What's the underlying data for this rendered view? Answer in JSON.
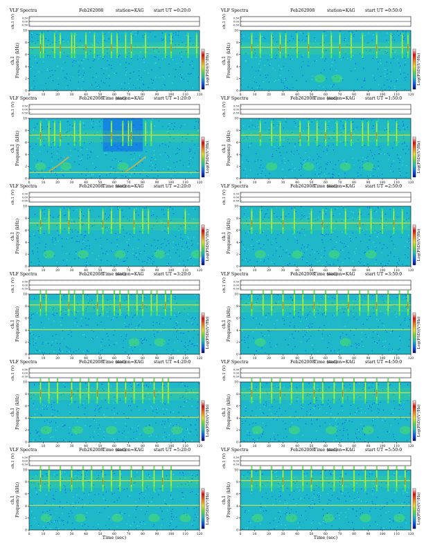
{
  "header": {
    "prefix": "VLF Spectra",
    "date": "Feb262008",
    "station": "station=KAG",
    "start_prefix": "start  UT ="
  },
  "axes": {
    "top_ylabel": "ch.1 (V)",
    "top_yticks": [
      "0.50",
      "0.00",
      "-0.50"
    ],
    "ylabel_line1": "ch.1",
    "ylabel_line2": "Frequency  (kHz)",
    "yticks": [
      "0",
      "2",
      "4",
      "6",
      "8",
      "10"
    ],
    "xlabel": "Time  (sec)",
    "xticks": [
      "0",
      "10",
      "20",
      "30",
      "40",
      "50",
      "60",
      "70",
      "80",
      "90",
      "100",
      "110",
      "120"
    ],
    "colorbar_label": "Log(PSD)(V²/Hz)"
  },
  "colors": {
    "background": "#1fb8c8",
    "speckle_dark": "#0c5ff0",
    "speckle_mid": "#2ea0f0",
    "speckle_light": "#4fe0d8",
    "emission_green": "#57e850",
    "emission_yellow": "#e8e83a",
    "emission_red": "#e23a10",
    "colorbar": [
      "#ffffff",
      "#d81010",
      "#f08020",
      "#f0e030",
      "#60e040",
      "#20c0c0",
      "#1060f0",
      "#0a0a80"
    ]
  },
  "chart_data": [
    {
      "type": "heatmap",
      "start_ut": "0:20:0",
      "x_range": [
        0,
        120
      ],
      "y_range": [
        0,
        10
      ],
      "spike_times": [
        8,
        10,
        18,
        22,
        30,
        32,
        40,
        46,
        52,
        58,
        62,
        68,
        72,
        82,
        96,
        100,
        112,
        118
      ],
      "horizontal_lines_khz": [
        7.2
      ],
      "band_khz": [
        6,
        8
      ],
      "low_blob_times": []
    },
    {
      "type": "heatmap",
      "start_ut": "0:50:0",
      "x_range": [
        0,
        120
      ],
      "y_range": [
        0,
        10
      ],
      "spike_times": [
        8,
        14,
        22,
        28,
        32,
        40,
        48,
        58,
        64,
        70,
        78,
        86,
        96,
        106,
        114,
        118
      ],
      "horizontal_lines_khz": [
        7.2
      ],
      "band_khz": [
        6,
        8
      ],
      "low_blob_times": [
        56,
        68
      ]
    },
    {
      "type": "heatmap",
      "start_ut": "1:20:0",
      "x_range": [
        0,
        120
      ],
      "y_range": [
        0,
        10
      ],
      "spike_times": [
        8,
        14,
        18,
        22,
        32,
        36,
        58,
        66,
        70,
        72,
        82,
        86
      ],
      "horizontal_lines_khz": [
        7.2,
        1.0
      ],
      "band_khz": [
        6,
        8
      ],
      "low_blob_times": [
        8,
        26,
        66
      ],
      "dark_regions_sec": [
        [
          52,
          80
        ]
      ],
      "rising_tones_sec": [
        [
          14,
          28
        ],
        [
          68,
          82
        ]
      ]
    },
    {
      "type": "heatmap",
      "start_ut": "1:50:0",
      "x_range": [
        0,
        120
      ],
      "y_range": [
        0,
        10
      ],
      "spike_times": [
        14,
        22,
        28,
        42,
        48,
        54,
        60,
        68,
        74,
        78,
        86,
        90,
        96,
        104,
        110
      ],
      "horizontal_lines_khz": [
        7.2
      ],
      "band_khz": [
        6,
        8
      ],
      "low_blob_times": [
        22,
        48,
        74,
        90
      ]
    },
    {
      "type": "heatmap",
      "start_ut": "2:20:0",
      "x_range": [
        0,
        120
      ],
      "y_range": [
        0,
        10
      ],
      "spike_times": [
        8,
        14,
        22,
        28,
        36,
        42,
        52,
        58,
        64,
        74,
        80,
        84,
        98,
        110
      ],
      "horizontal_lines_khz": [
        7.2
      ],
      "band_khz": [
        6,
        8
      ],
      "low_blob_times": [
        14,
        38,
        64,
        92,
        118
      ]
    },
    {
      "type": "heatmap",
      "start_ut": "2:50:0",
      "x_range": [
        0,
        120
      ],
      "y_range": [
        0,
        10
      ],
      "spike_times": [
        8,
        14,
        22,
        30,
        38,
        50,
        58,
        64,
        74,
        84,
        92,
        100,
        108,
        114
      ],
      "horizontal_lines_khz": [
        7.2
      ],
      "band_khz": [
        6,
        8
      ],
      "low_blob_times": [
        14,
        40,
        66,
        92
      ]
    },
    {
      "type": "heatmap",
      "start_ut": "3:20:0",
      "x_range": [
        0,
        120
      ],
      "y_range": [
        0,
        10
      ],
      "spike_times": [
        8,
        12,
        22,
        28,
        32,
        38,
        48,
        52,
        60,
        64,
        70,
        76,
        80,
        86,
        90,
        96,
        100
      ],
      "horizontal_lines_khz": [
        8.2,
        4.1
      ],
      "band_khz": [
        7,
        9
      ],
      "low_blob_times": [
        74,
        92
      ]
    },
    {
      "type": "heatmap",
      "start_ut": "3:50:0",
      "x_range": [
        0,
        120
      ],
      "y_range": [
        0,
        10
      ],
      "spike_times": [
        8,
        16,
        22,
        30,
        38,
        44,
        52,
        60,
        68,
        76,
        84,
        90,
        96,
        104,
        112,
        118
      ],
      "horizontal_lines_khz": [
        8.2,
        4.1
      ],
      "band_khz": [
        7,
        9
      ],
      "low_blob_times": [
        14,
        74
      ]
    },
    {
      "type": "heatmap",
      "start_ut": "4:20:0",
      "x_range": [
        0,
        120
      ],
      "y_range": [
        0,
        10
      ],
      "spike_times": [
        8,
        14,
        20,
        30,
        36,
        42,
        48,
        56,
        62,
        68,
        74,
        80,
        88,
        94,
        98
      ],
      "horizontal_lines_khz": [
        8.2,
        4.1
      ],
      "band_khz": [
        7,
        9
      ],
      "low_blob_times": [
        12,
        34,
        58,
        84,
        104
      ]
    },
    {
      "type": "heatmap",
      "start_ut": "4:50:0",
      "x_range": [
        0,
        120
      ],
      "y_range": [
        0,
        10
      ],
      "spike_times": [
        8,
        14,
        22,
        28,
        36,
        44,
        52,
        58,
        66,
        72,
        80,
        88,
        96,
        104,
        112
      ],
      "horizontal_lines_khz": [
        8.2,
        4.1
      ],
      "band_khz": [
        7,
        9
      ],
      "low_blob_times": [
        12,
        38,
        64,
        90,
        116
      ]
    },
    {
      "type": "heatmap",
      "start_ut": "5:20:0",
      "x_range": [
        0,
        120
      ],
      "y_range": [
        0,
        10
      ],
      "spike_times": [
        8,
        14,
        22,
        30,
        38,
        44,
        52,
        58,
        64,
        72,
        80,
        88,
        94,
        100
      ],
      "horizontal_lines_khz": [
        8.2,
        4.1
      ],
      "band_khz": [
        7,
        9
      ],
      "low_blob_times": [
        12,
        36,
        62,
        88,
        110
      ]
    },
    {
      "type": "heatmap",
      "start_ut": "5:50:0",
      "x_range": [
        0,
        120
      ],
      "y_range": [
        0,
        10
      ],
      "spike_times": [
        8,
        14,
        22,
        30,
        36,
        44,
        50,
        58,
        66,
        72,
        80,
        88,
        96,
        104,
        110,
        116
      ],
      "horizontal_lines_khz": [
        8.2,
        4.1
      ],
      "band_khz": [
        7,
        9
      ],
      "low_blob_times": [
        12,
        36,
        62,
        88,
        112
      ]
    }
  ]
}
